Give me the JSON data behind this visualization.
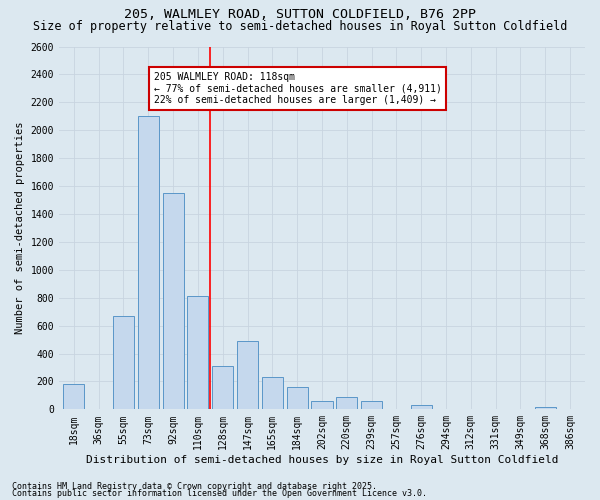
{
  "title1": "205, WALMLEY ROAD, SUTTON COLDFIELD, B76 2PP",
  "title2": "Size of property relative to semi-detached houses in Royal Sutton Coldfield",
  "xlabel": "Distribution of semi-detached houses by size in Royal Sutton Coldfield",
  "ylabel": "Number of semi-detached properties",
  "categories": [
    "18sqm",
    "36sqm",
    "55sqm",
    "73sqm",
    "92sqm",
    "110sqm",
    "128sqm",
    "147sqm",
    "165sqm",
    "184sqm",
    "202sqm",
    "220sqm",
    "239sqm",
    "257sqm",
    "276sqm",
    "294sqm",
    "312sqm",
    "331sqm",
    "349sqm",
    "368sqm",
    "386sqm"
  ],
  "values": [
    180,
    0,
    670,
    2100,
    1550,
    810,
    310,
    490,
    235,
    160,
    60,
    90,
    60,
    0,
    30,
    0,
    0,
    0,
    0,
    20,
    0
  ],
  "bar_color": "#c5d8ed",
  "bar_edge_color": "#5a96c8",
  "grid_color": "#c8d4e0",
  "background_color": "#dce8f0",
  "red_line_index": 5,
  "annotation_text": "205 WALMLEY ROAD: 118sqm\n← 77% of semi-detached houses are smaller (4,911)\n22% of semi-detached houses are larger (1,409) →",
  "annotation_box_color": "#ffffff",
  "annotation_box_edge": "#cc0000",
  "ylim": [
    0,
    2600
  ],
  "yticks": [
    0,
    200,
    400,
    600,
    800,
    1000,
    1200,
    1400,
    1600,
    1800,
    2000,
    2200,
    2400,
    2600
  ],
  "footer1": "Contains HM Land Registry data © Crown copyright and database right 2025.",
  "footer2": "Contains public sector information licensed under the Open Government Licence v3.0.",
  "title1_fontsize": 9.5,
  "title2_fontsize": 8.5,
  "xlabel_fontsize": 8,
  "ylabel_fontsize": 7.5,
  "tick_fontsize": 7,
  "annotation_fontsize": 7,
  "footer_fontsize": 6
}
